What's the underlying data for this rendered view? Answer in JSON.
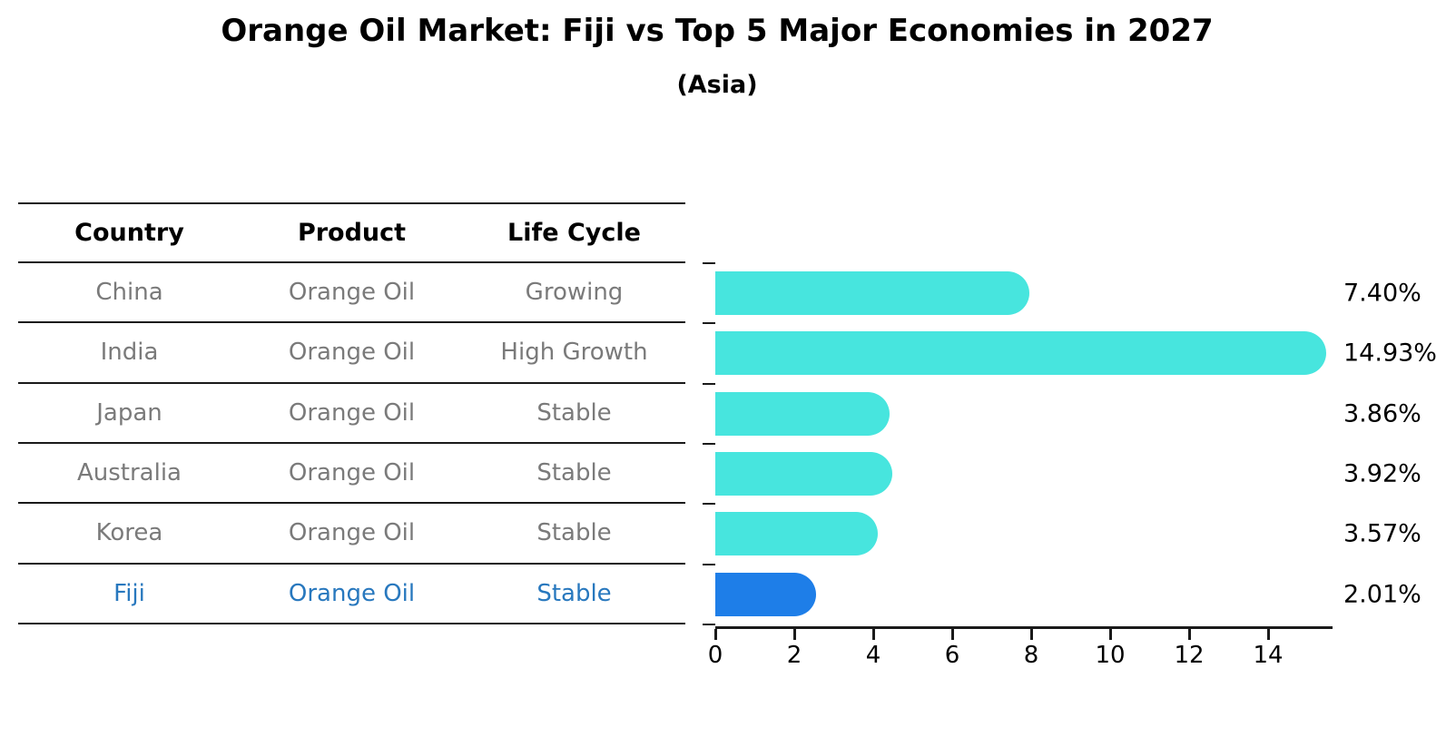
{
  "title": "Orange Oil Market: Fiji vs Top 5 Major Economies in 2027",
  "subtitle": "(Asia)",
  "table": {
    "headers": [
      "Country",
      "Product",
      "Life Cycle"
    ],
    "rows": [
      {
        "country": "China",
        "product": "Orange Oil",
        "life_cycle": "Growing",
        "highlight": false
      },
      {
        "country": "India",
        "product": "Orange Oil",
        "life_cycle": "High Growth",
        "highlight": false
      },
      {
        "country": "Japan",
        "product": "Orange Oil",
        "life_cycle": "Stable",
        "highlight": false
      },
      {
        "country": "Australia",
        "product": "Orange Oil",
        "life_cycle": "Stable",
        "highlight": false
      },
      {
        "country": "Korea",
        "product": "Orange Oil",
        "life_cycle": "Stable",
        "highlight": false
      },
      {
        "country": "Fiji",
        "product": "Orange Oil",
        "life_cycle": "Stable",
        "highlight": true
      }
    ]
  },
  "chart_data": {
    "type": "bar",
    "orientation": "horizontal",
    "title": "Orange Oil Market: Fiji vs Top 5 Major Economies in 2027",
    "subtitle": "(Asia)",
    "categories": [
      "China",
      "India",
      "Japan",
      "Australia",
      "Korea",
      "Fiji"
    ],
    "values": [
      7.4,
      14.93,
      3.86,
      3.92,
      3.57,
      2.01
    ],
    "value_labels": [
      "7.40%",
      "14.93%",
      "3.86%",
      "3.92%",
      "3.57%",
      "2.01%"
    ],
    "unit": "percent",
    "x_ticks": [
      0,
      2,
      4,
      6,
      8,
      10,
      12,
      14
    ],
    "xlim": [
      0,
      15.6
    ],
    "highlight_index": 5,
    "grid": false,
    "legend": "none"
  },
  "colors": {
    "bar": "#47E5DE",
    "highlight_bar": "#1E7EE8",
    "highlight_text": "#2878BE",
    "cell_text": "#7A7A7A",
    "header_text": "#000000",
    "line": "#1a1a1a"
  }
}
